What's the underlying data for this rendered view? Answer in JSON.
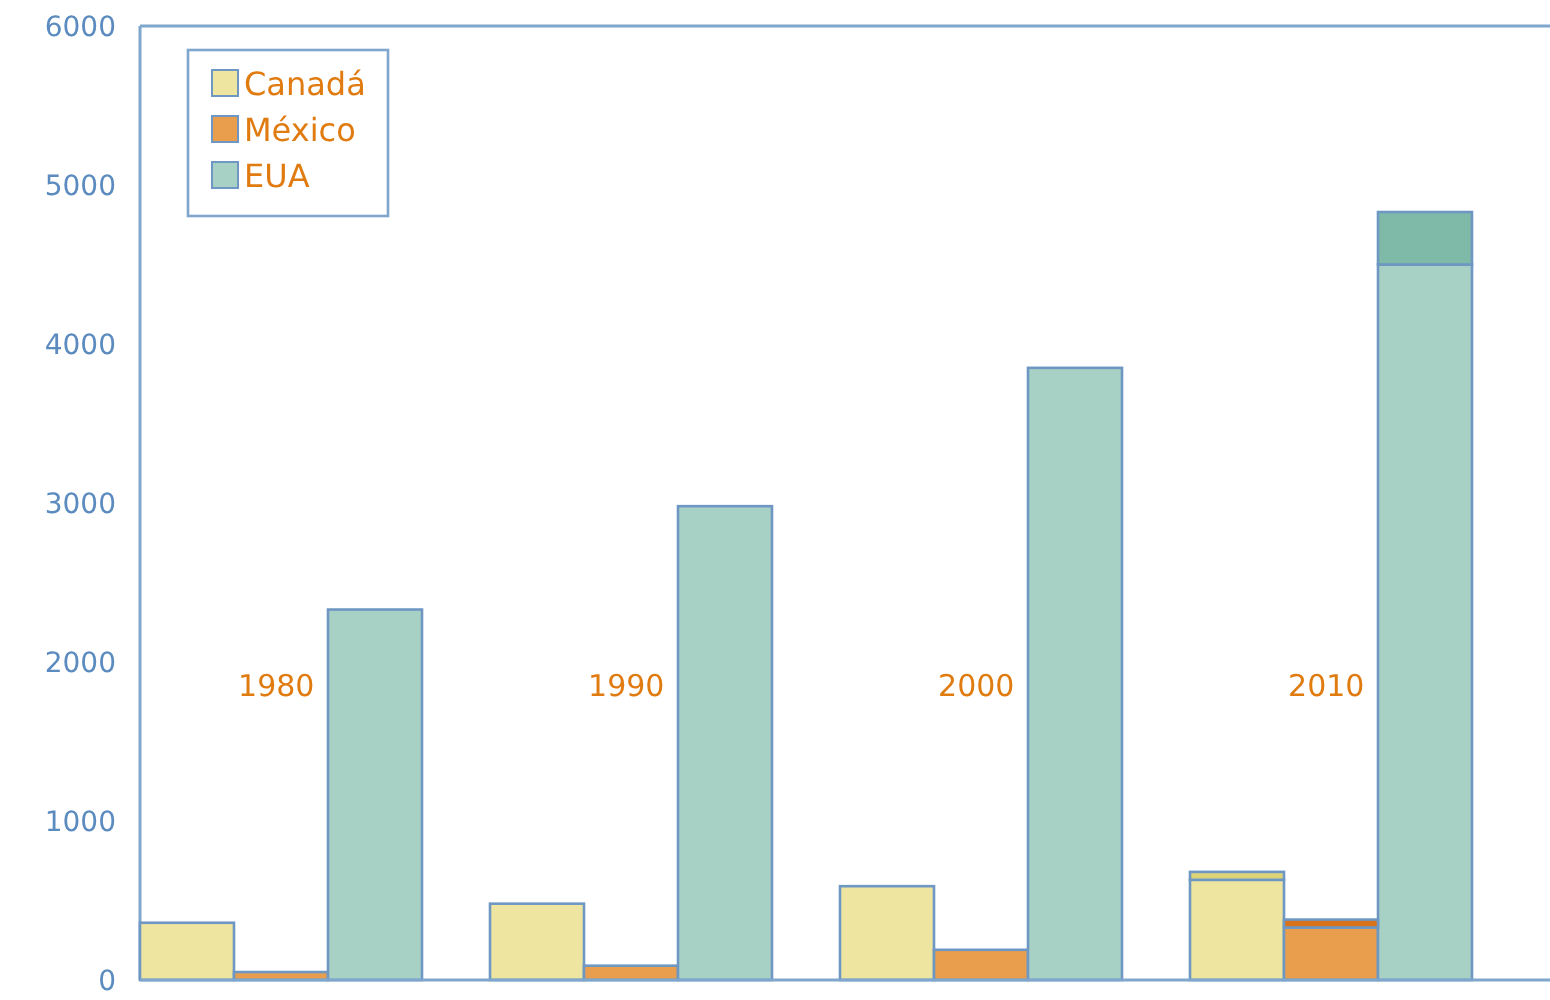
{
  "chart_data": {
    "type": "bar",
    "stacked": true,
    "categories": [
      null,
      "1980",
      null,
      null,
      "1990",
      null,
      null,
      "2000",
      null,
      null,
      "2010",
      null
    ],
    "series": [
      {
        "name": "Canadá",
        "color": "#ede5a0",
        "values": [
          360,
          null,
          null,
          480,
          null,
          null,
          590,
          null,
          null,
          630,
          null,
          null
        ]
      },
      {
        "name": "México",
        "color": "#e89e4c",
        "values": [
          null,
          50,
          null,
          null,
          90,
          null,
          null,
          190,
          null,
          null,
          330,
          null
        ]
      },
      {
        "name": "EUA",
        "color": "#a8d1c5",
        "values": [
          null,
          null,
          2330,
          null,
          null,
          2980,
          null,
          null,
          3850,
          null,
          null,
          4500
        ]
      },
      {
        "colors": [
          null,
          null,
          null,
          null,
          null,
          null,
          null,
          null,
          null,
          "#ddd47a",
          "#d9731a",
          "#7fbaa9"
        ],
        "values": [
          null,
          null,
          null,
          null,
          null,
          null,
          null,
          null,
          null,
          50,
          50,
          330
        ]
      }
    ],
    "ylim": [
      0,
      6000
    ],
    "yticks": [
      0,
      1000,
      2000,
      3000,
      4000,
      5000,
      6000
    ],
    "legend": "top left"
  }
}
